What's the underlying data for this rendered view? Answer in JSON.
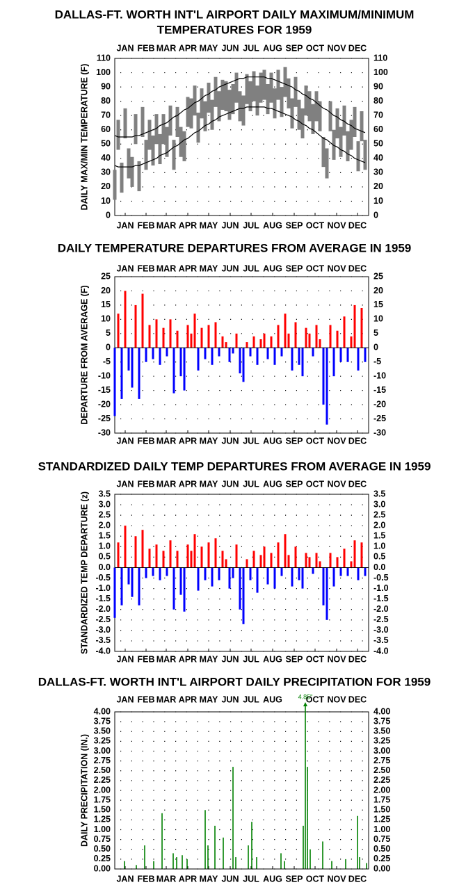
{
  "chart_data": [
    {
      "type": "range",
      "title": [
        "DALLAS-FT. WORTH INT'L AIRPORT DAILY MAXIMUM/MINIMUM",
        "TEMPERATURES FOR 1959"
      ],
      "ylabel": "DAILY MAX/MIN TEMPERATURE (F)",
      "xlim": [
        1,
        366
      ],
      "xticks": [
        {
          "value": 16,
          "label": "JAN"
        },
        {
          "value": 46,
          "label": "FEB"
        },
        {
          "value": 75,
          "label": "MAR"
        },
        {
          "value": 106,
          "label": "APR"
        },
        {
          "value": 136,
          "label": "MAY"
        },
        {
          "value": 167,
          "label": "JUN"
        },
        {
          "value": 197,
          "label": "JUL"
        },
        {
          "value": 228,
          "label": "AUG"
        },
        {
          "value": 259,
          "label": "SEP"
        },
        {
          "value": 289,
          "label": "OCT"
        },
        {
          "value": 320,
          "label": "NOV"
        },
        {
          "value": 350,
          "label": "DEC"
        }
      ],
      "ylim": [
        0,
        110
      ],
      "yticks": [
        0,
        10,
        20,
        30,
        40,
        50,
        60,
        70,
        80,
        90,
        100,
        110
      ],
      "grid": true,
      "range_color": "#808080",
      "normal_color": "#000000",
      "x": [
        1,
        6,
        11,
        16,
        21,
        26,
        31,
        36,
        41,
        46,
        51,
        56,
        61,
        66,
        71,
        76,
        81,
        86,
        91,
        96,
        101,
        106,
        111,
        116,
        121,
        126,
        131,
        136,
        141,
        146,
        151,
        156,
        161,
        166,
        171,
        176,
        181,
        186,
        191,
        196,
        201,
        206,
        211,
        216,
        221,
        226,
        231,
        236,
        241,
        246,
        251,
        256,
        261,
        266,
        271,
        276,
        281,
        286,
        291,
        296,
        301,
        306,
        311,
        316,
        321,
        326,
        331,
        336,
        341,
        346,
        351,
        356,
        361
      ],
      "max": [
        32,
        67,
        37,
        75,
        47,
        41,
        71,
        38,
        76,
        53,
        67,
        56,
        71,
        57,
        71,
        62,
        77,
        53,
        76,
        62,
        59,
        83,
        82,
        91,
        72,
        89,
        80,
        93,
        81,
        97,
        87,
        95,
        94,
        88,
        92,
        100,
        87,
        84,
        99,
        94,
        101,
        91,
        100,
        102,
        92,
        100,
        89,
        102,
        90,
        104,
        96,
        82,
        97,
        81,
        75,
        91,
        87,
        78,
        87,
        80,
        55,
        47,
        80,
        60,
        75,
        62,
        77,
        59,
        67,
        76,
        52,
        73,
        53
      ],
      "min": [
        11,
        46,
        16,
        54,
        26,
        20,
        50,
        17,
        55,
        32,
        46,
        35,
        50,
        36,
        50,
        41,
        56,
        32,
        55,
        41,
        38,
        62,
        61,
        70,
        51,
        68,
        59,
        72,
        60,
        76,
        66,
        74,
        73,
        67,
        71,
        79,
        66,
        63,
        78,
        73,
        80,
        70,
        79,
        81,
        71,
        79,
        68,
        81,
        69,
        83,
        75,
        61,
        76,
        60,
        54,
        70,
        66,
        57,
        66,
        59,
        34,
        26,
        59,
        39,
        54,
        41,
        56,
        38,
        46,
        55,
        31,
        52,
        32
      ],
      "normal_max": [
        56,
        55,
        55,
        55,
        55,
        55,
        56,
        56,
        57,
        58,
        59,
        60,
        61,
        63,
        64,
        65,
        67,
        69,
        70,
        72,
        74,
        75,
        77,
        79,
        80,
        82,
        84,
        85,
        87,
        88,
        90,
        91,
        92,
        93,
        94,
        95,
        96,
        96,
        97,
        97,
        97,
        97,
        97,
        97,
        96,
        96,
        95,
        94,
        93,
        92,
        91,
        90,
        88,
        87,
        85,
        84,
        82,
        81,
        79,
        77,
        75,
        74,
        72,
        70,
        69,
        67,
        66,
        64,
        63,
        61,
        60,
        59,
        58
      ],
      "normal_min": [
        35,
        34,
        34,
        34,
        34,
        34,
        35,
        35,
        36,
        37,
        38,
        39,
        40,
        42,
        43,
        44,
        46,
        48,
        49,
        51,
        53,
        54,
        56,
        58,
        59,
        61,
        63,
        64,
        66,
        67,
        69,
        70,
        71,
        72,
        73,
        74,
        75,
        75,
        76,
        76,
        76,
        76,
        76,
        76,
        75,
        75,
        74,
        73,
        72,
        71,
        70,
        69,
        67,
        66,
        64,
        63,
        61,
        60,
        58,
        56,
        54,
        53,
        51,
        49,
        48,
        46,
        45,
        43,
        42,
        40,
        39,
        38,
        37
      ]
    },
    {
      "type": "bar",
      "title": [
        "DAILY TEMPERATURE DEPARTURES FROM AVERAGE IN 1959"
      ],
      "ylabel": "DEPARTURE FROM AVERAGE (F)",
      "xlim": [
        1,
        366
      ],
      "xticks": [
        {
          "value": 16,
          "label": "JAN"
        },
        {
          "value": 46,
          "label": "FEB"
        },
        {
          "value": 75,
          "label": "MAR"
        },
        {
          "value": 106,
          "label": "APR"
        },
        {
          "value": 136,
          "label": "MAY"
        },
        {
          "value": 167,
          "label": "JUN"
        },
        {
          "value": 197,
          "label": "JUL"
        },
        {
          "value": 228,
          "label": "AUG"
        },
        {
          "value": 259,
          "label": "SEP"
        },
        {
          "value": 289,
          "label": "OCT"
        },
        {
          "value": 320,
          "label": "NOV"
        },
        {
          "value": 350,
          "label": "DEC"
        }
      ],
      "ylim": [
        -30,
        25
      ],
      "yticks": [
        -30,
        -25,
        -20,
        -15,
        -10,
        -5,
        0,
        5,
        10,
        15,
        20,
        25
      ],
      "grid": true,
      "positive_color": "#ff0000",
      "negative_color": "#0000ff",
      "x": [
        1,
        6,
        11,
        16,
        21,
        26,
        31,
        36,
        41,
        46,
        51,
        56,
        61,
        66,
        71,
        76,
        81,
        86,
        91,
        96,
        101,
        106,
        111,
        116,
        121,
        126,
        131,
        136,
        141,
        146,
        151,
        156,
        161,
        166,
        171,
        176,
        181,
        186,
        191,
        196,
        201,
        206,
        211,
        216,
        221,
        226,
        231,
        236,
        241,
        246,
        251,
        256,
        261,
        266,
        271,
        276,
        281,
        286,
        291,
        296,
        301,
        306,
        311,
        316,
        321,
        326,
        331,
        336,
        341,
        346,
        351,
        356,
        361
      ],
      "values": [
        -24,
        12,
        -18,
        20,
        -8,
        -14,
        15,
        -18,
        19,
        -5,
        8,
        -4,
        10,
        -6,
        7,
        -3,
        10,
        -16,
        6,
        -10,
        -15,
        8,
        5,
        12,
        -8,
        7,
        -4,
        8,
        -6,
        9,
        -3,
        4,
        2,
        -5,
        -2,
        5,
        -9,
        -12,
        2,
        -3,
        4,
        -6,
        3,
        5,
        -4,
        4,
        -6,
        8,
        -3,
        12,
        5,
        -8,
        9,
        -6,
        -10,
        7,
        5,
        -3,
        8,
        3,
        -20,
        -27,
        8,
        -10,
        6,
        -5,
        11,
        -5,
        4,
        15,
        -8,
        14,
        -5
      ]
    },
    {
      "type": "bar",
      "title": [
        "STANDARDIZED DAILY TEMP DEPARTURES FROM AVERAGE IN 1959"
      ],
      "ylabel": "STANDARDIZED TEMP DEPARTURE (z)",
      "xlim": [
        1,
        366
      ],
      "xticks": [
        {
          "value": 16,
          "label": "JAN"
        },
        {
          "value": 46,
          "label": "FEB"
        },
        {
          "value": 75,
          "label": "MAR"
        },
        {
          "value": 106,
          "label": "APR"
        },
        {
          "value": 136,
          "label": "MAY"
        },
        {
          "value": 167,
          "label": "JUN"
        },
        {
          "value": 197,
          "label": "JUL"
        },
        {
          "value": 228,
          "label": "AUG"
        },
        {
          "value": 259,
          "label": "SEP"
        },
        {
          "value": 289,
          "label": "OCT"
        },
        {
          "value": 320,
          "label": "NOV"
        },
        {
          "value": 350,
          "label": "DEC"
        }
      ],
      "ylim": [
        -4,
        3.5
      ],
      "yticks": [
        {
          "value": -4,
          "label": "-4.0"
        },
        -3.5,
        {
          "value": -3,
          "label": "-3.0"
        },
        -2.5,
        {
          "value": -2,
          "label": "-2.0"
        },
        -1.5,
        {
          "value": -1,
          "label": "-1.0"
        },
        -0.5,
        {
          "value": 0,
          "label": "0.0"
        },
        0.5,
        {
          "value": 1,
          "label": "1.0"
        },
        1.5,
        {
          "value": 2,
          "label": "2.0"
        },
        2.5,
        {
          "value": 3,
          "label": "3.0"
        },
        3.5
      ],
      "grid": true,
      "positive_color": "#ff0000",
      "negative_color": "#0000ff",
      "x": [
        1,
        6,
        11,
        16,
        21,
        26,
        31,
        36,
        41,
        46,
        51,
        56,
        61,
        66,
        71,
        76,
        81,
        86,
        91,
        96,
        101,
        106,
        111,
        116,
        121,
        126,
        131,
        136,
        141,
        146,
        151,
        156,
        161,
        166,
        171,
        176,
        181,
        186,
        191,
        196,
        201,
        206,
        211,
        216,
        221,
        226,
        231,
        236,
        241,
        246,
        251,
        256,
        261,
        266,
        271,
        276,
        281,
        286,
        291,
        296,
        301,
        306,
        311,
        316,
        321,
        326,
        331,
        336,
        341,
        346,
        351,
        356,
        361
      ],
      "values": [
        -2.4,
        1.2,
        -1.8,
        2.0,
        -0.8,
        -1.4,
        1.5,
        -1.8,
        1.8,
        -0.5,
        0.9,
        -0.4,
        1.1,
        -0.6,
        0.8,
        -0.4,
        1.3,
        -2.0,
        0.8,
        -1.3,
        -2.1,
        1.1,
        0.8,
        1.6,
        -1.1,
        1.0,
        -0.6,
        1.2,
        -0.9,
        1.4,
        -0.6,
        0.8,
        0.4,
        -1.0,
        -0.5,
        1.1,
        -2.0,
        -2.7,
        0.4,
        -0.6,
        0.8,
        -1.2,
        0.6,
        1.0,
        -0.8,
        0.7,
        -1.0,
        1.2,
        -0.4,
        1.6,
        0.6,
        -0.9,
        1.0,
        -0.6,
        -1.0,
        0.7,
        0.5,
        -0.3,
        0.7,
        0.3,
        -1.8,
        -2.5,
        0.7,
        -0.9,
        0.5,
        -0.4,
        0.9,
        -0.4,
        0.3,
        1.3,
        -0.6,
        1.2,
        -0.4
      ]
    },
    {
      "type": "bar",
      "title": [
        "DALLAS-FT. WORTH INT'L AIRPORT DAILY PRECIPITATION FOR 1959"
      ],
      "ylabel": "DAILY PRECIPITATION (IN.)",
      "xlim": [
        1,
        366
      ],
      "xticks": [
        {
          "value": 16,
          "label": "JAN"
        },
        {
          "value": 46,
          "label": "FEB"
        },
        {
          "value": 75,
          "label": "MAR"
        },
        {
          "value": 106,
          "label": "APR"
        },
        {
          "value": 136,
          "label": "MAY"
        },
        {
          "value": 167,
          "label": "JUN"
        },
        {
          "value": 197,
          "label": "JUL"
        },
        {
          "value": 228,
          "label": "AUG"
        },
        {
          "value": 259,
          "label": "SEP"
        },
        {
          "value": 289,
          "label": "OCT"
        },
        {
          "value": 320,
          "label": "NOV"
        },
        {
          "value": 350,
          "label": "DEC"
        }
      ],
      "xticks_top": [
        {
          "value": 16,
          "label": "JAN"
        },
        {
          "value": 46,
          "label": "FEB"
        },
        {
          "value": 75,
          "label": "MAR"
        },
        {
          "value": 106,
          "label": "APR"
        },
        {
          "value": 136,
          "label": "MAY"
        },
        {
          "value": 167,
          "label": "JUN"
        },
        {
          "value": 197,
          "label": "JUL"
        },
        {
          "value": 228,
          "label": "AUG"
        },
        {
          "value": 289,
          "label": "OCT"
        },
        {
          "value": 320,
          "label": "NOV"
        },
        {
          "value": 350,
          "label": "DEC"
        }
      ],
      "ylim": [
        0,
        4
      ],
      "yticks": [
        {
          "value": 0,
          "label": "0.00"
        },
        {
          "value": 0.25,
          "label": "0.25"
        },
        {
          "value": 0.5,
          "label": "0.50"
        },
        {
          "value": 0.75,
          "label": "0.75"
        },
        {
          "value": 1,
          "label": "1.00"
        },
        {
          "value": 1.25,
          "label": "1.25"
        },
        {
          "value": 1.5,
          "label": "1.50"
        },
        {
          "value": 1.75,
          "label": "1.75"
        },
        {
          "value": 2,
          "label": "2.00"
        },
        {
          "value": 2.25,
          "label": "2.25"
        },
        {
          "value": 2.5,
          "label": "2.50"
        },
        {
          "value": 2.75,
          "label": "2.75"
        },
        {
          "value": 3,
          "label": "3.00"
        },
        {
          "value": 3.25,
          "label": "3.25"
        },
        {
          "value": 3.5,
          "label": "3.50"
        },
        {
          "value": 3.75,
          "label": "3.75"
        },
        {
          "value": 4,
          "label": "4.00"
        }
      ],
      "grid": true,
      "positive_color": "#008000",
      "negative_color": "#008000",
      "x": [
        15,
        32,
        44,
        57,
        69,
        85,
        90,
        98,
        105,
        131,
        135,
        145,
        157,
        171,
        175,
        193,
        198,
        205,
        240,
        245,
        272,
        275,
        278,
        282,
        300,
        313,
        333,
        350,
        353,
        363
      ],
      "values": [
        0.2,
        0.1,
        0.6,
        0.2,
        1.42,
        0.4,
        0.3,
        0.35,
        0.25,
        1.5,
        0.6,
        1.1,
        0.8,
        2.6,
        0.3,
        0.6,
        1.2,
        0.3,
        0.4,
        0.2,
        1.1,
        4.85,
        2.6,
        0.5,
        0.7,
        0.2,
        0.25,
        1.35,
        0.3,
        0.15
      ],
      "value_labels": [
        null,
        null,
        null,
        null,
        null,
        null,
        null,
        null,
        null,
        null,
        null,
        null,
        null,
        null,
        null,
        null,
        null,
        null,
        null,
        null,
        null,
        "4.85\"",
        null,
        null,
        null,
        null,
        null,
        null,
        null,
        null
      ]
    }
  ]
}
